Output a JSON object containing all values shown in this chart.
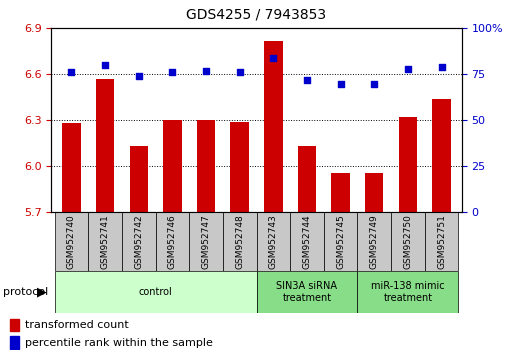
{
  "title": "GDS4255 / 7943853",
  "samples": [
    "GSM952740",
    "GSM952741",
    "GSM952742",
    "GSM952746",
    "GSM952747",
    "GSM952748",
    "GSM952743",
    "GSM952744",
    "GSM952745",
    "GSM952749",
    "GSM952750",
    "GSM952751"
  ],
  "red_values": [
    6.28,
    6.57,
    6.13,
    6.3,
    6.3,
    6.29,
    6.82,
    6.13,
    5.96,
    5.96,
    6.32,
    6.44
  ],
  "blue_values": [
    76,
    80,
    74,
    76,
    77,
    76,
    84,
    72,
    70,
    70,
    78,
    79
  ],
  "ylim_left": [
    5.7,
    6.9
  ],
  "ylim_right": [
    0,
    100
  ],
  "yticks_left": [
    5.7,
    6.0,
    6.3,
    6.6,
    6.9
  ],
  "yticks_right": [
    0,
    25,
    50,
    75,
    100
  ],
  "red_color": "#cc0000",
  "blue_color": "#0000cc",
  "groups": [
    {
      "label": "control",
      "start": 0,
      "end": 6,
      "color": "#ccffcc"
    },
    {
      "label": "SIN3A siRNA\ntreatment",
      "start": 6,
      "end": 9,
      "color": "#88dd88"
    },
    {
      "label": "miR-138 mimic\ntreatment",
      "start": 9,
      "end": 12,
      "color": "#88dd88"
    }
  ],
  "protocol_label": "protocol",
  "legend_red": "transformed count",
  "legend_blue": "percentile rank within the sample",
  "bar_width": 0.55,
  "figsize": [
    5.13,
    3.54
  ],
  "dpi": 100
}
